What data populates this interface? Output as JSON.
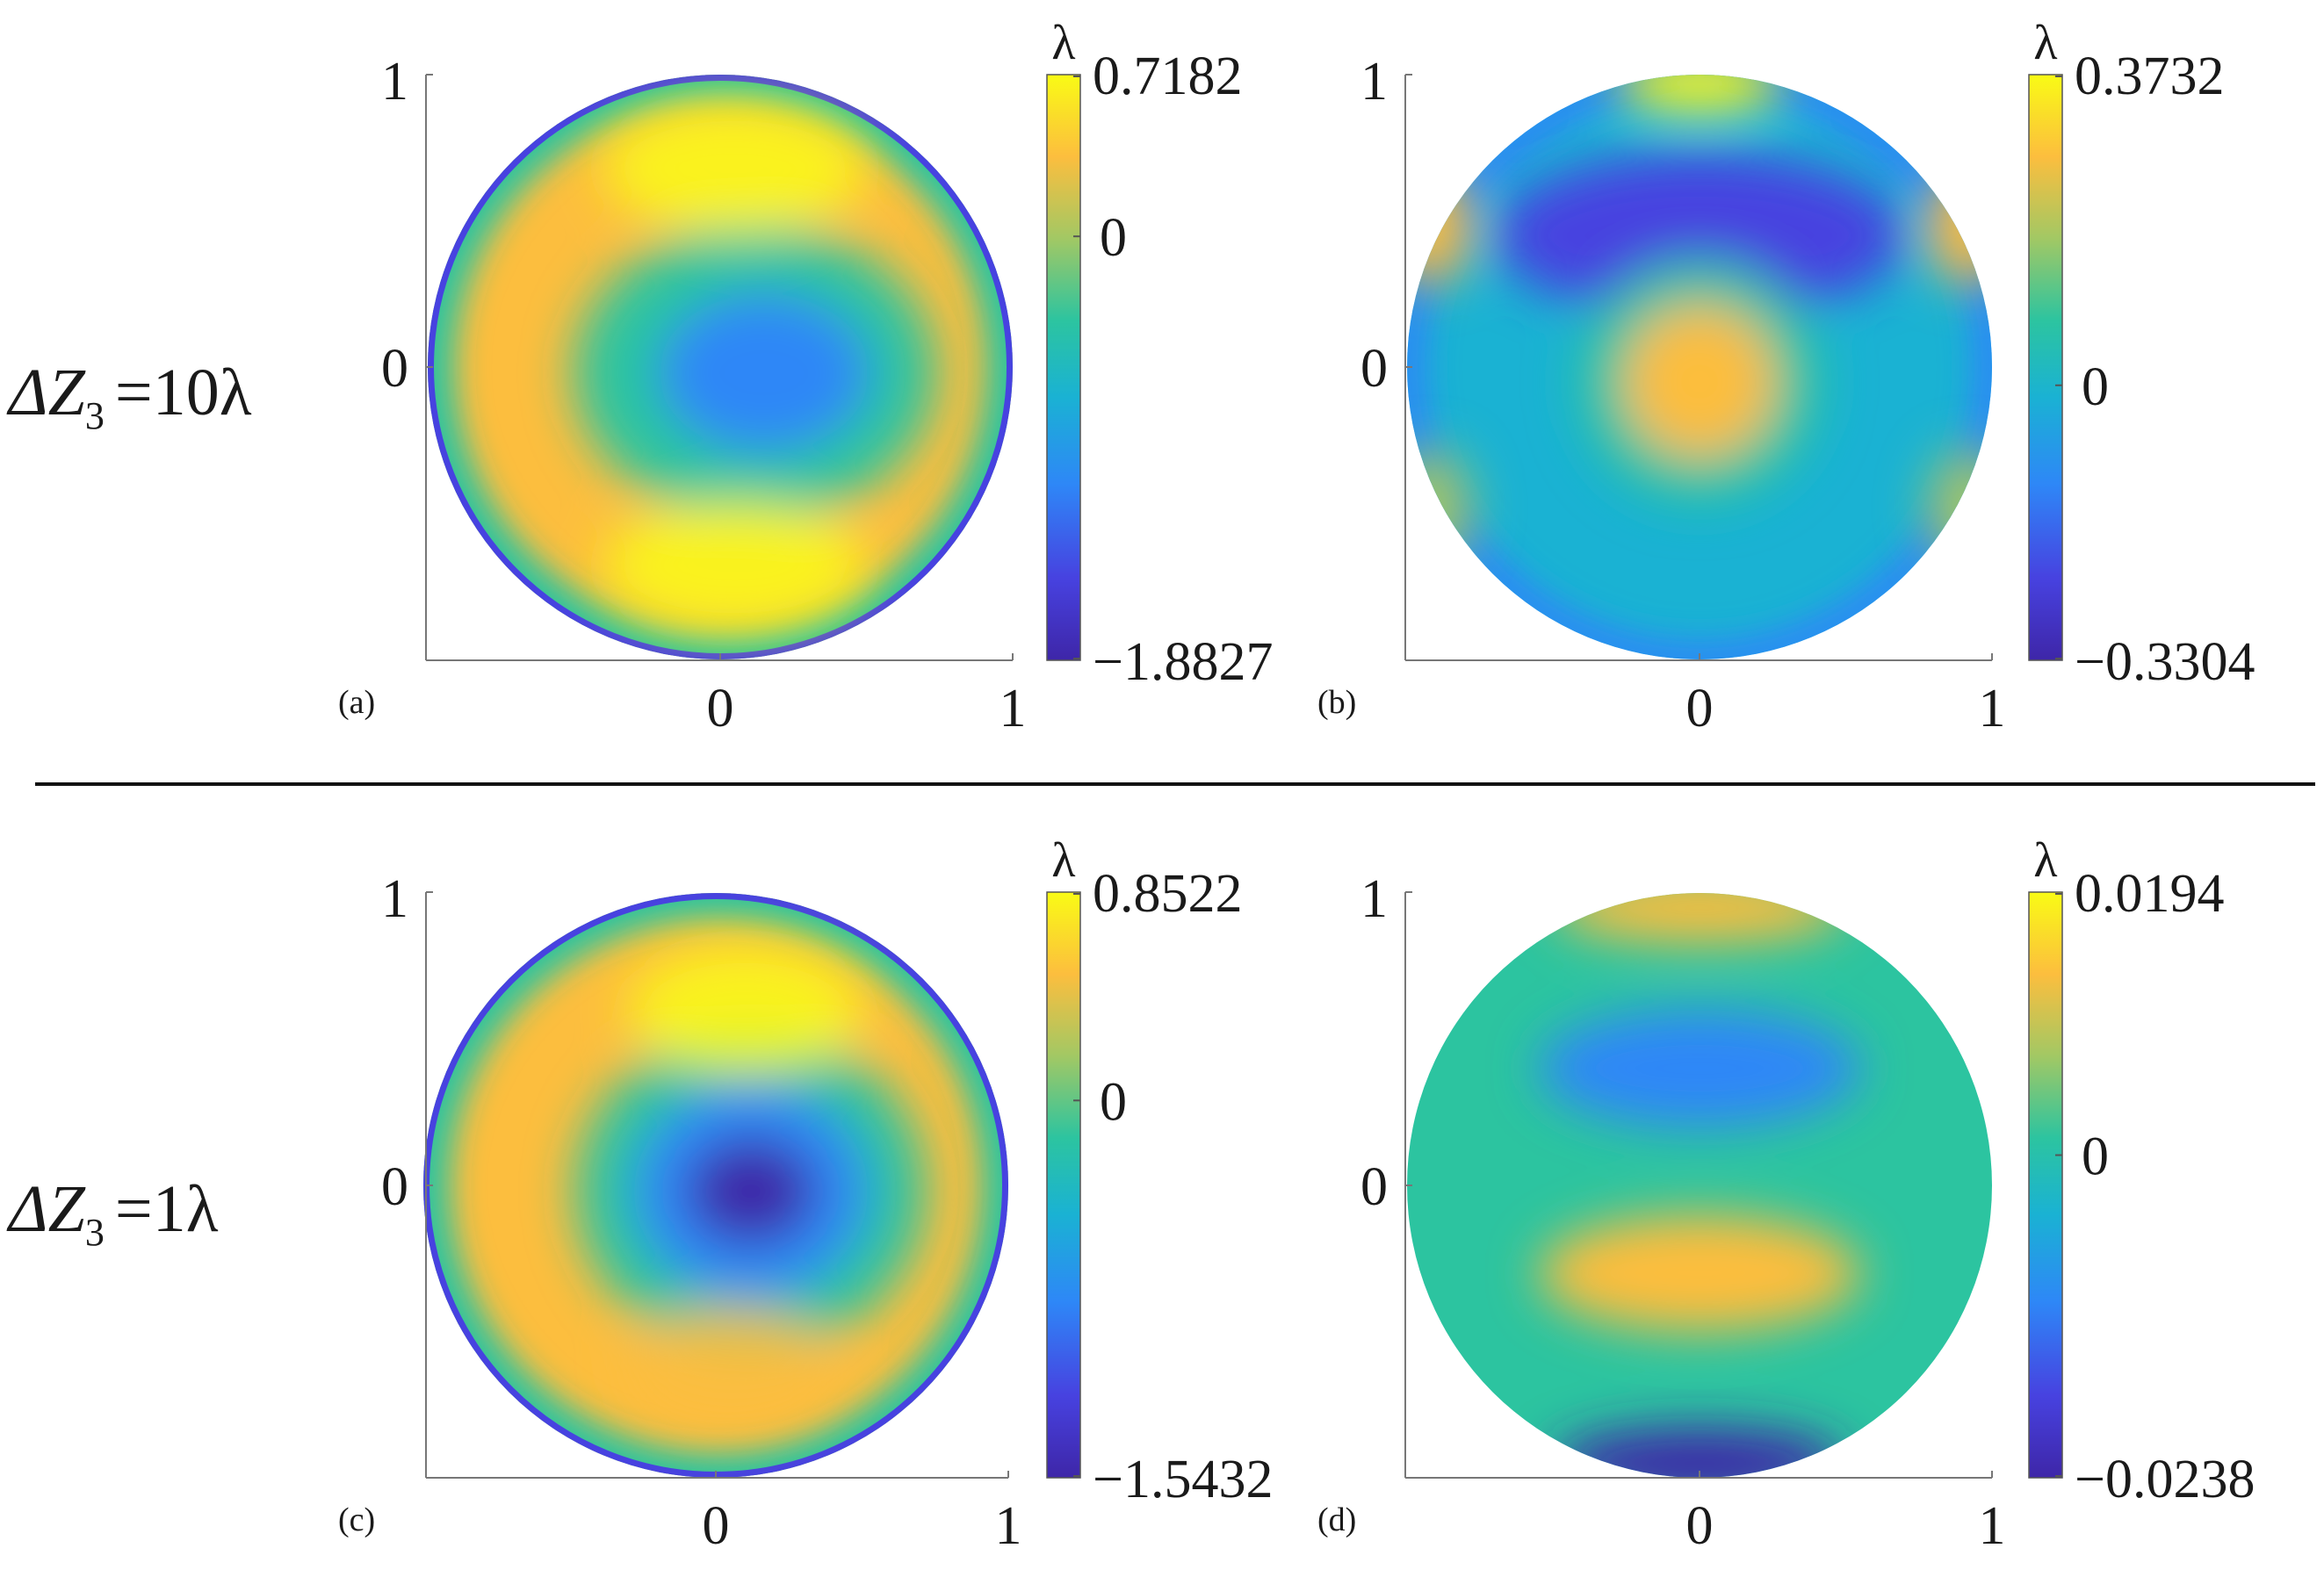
{
  "rows": [
    {
      "label_prefix": "ΔZ",
      "label_sub": "3",
      "label_value": "=10λ"
    },
    {
      "label_prefix": "ΔZ",
      "label_sub": "3",
      "label_value": "=1λ"
    }
  ],
  "colormap": [
    "#3e26a8",
    "#4742e0",
    "#2e87f7",
    "#1ab2d3",
    "#2cc4a0",
    "#a2c864",
    "#fcbe3e",
    "#f9fb15"
  ],
  "panels": [
    {
      "tag": "(a)",
      "unit": "λ",
      "cbar_max": "0.7182",
      "cbar_mid": "0",
      "cbar_min": "−1.8827",
      "x_ticks": [
        "0",
        "1"
      ],
      "y_ticks": [
        "1",
        "0"
      ],
      "pattern": "defocus-ring",
      "blobs": [
        {
          "x": 0.12,
          "y": -0.02,
          "rx": 0.62,
          "ry": 0.5,
          "color": "#2cc4a0"
        },
        {
          "x": 0.15,
          "y": -0.02,
          "rx": 0.36,
          "ry": 0.27,
          "color": "#2e87f7"
        }
      ],
      "highlights": [
        {
          "x": 0.05,
          "y": 0.68,
          "rx": 0.45,
          "ry": 0.22,
          "color": "#f9fb15"
        },
        {
          "x": 0.05,
          "y": -0.68,
          "rx": 0.45,
          "ry": 0.22,
          "color": "#f9fb15"
        }
      ]
    },
    {
      "tag": "(b)",
      "unit": "λ",
      "cbar_max": "0.3732",
      "cbar_mid": "0",
      "cbar_min": "−0.3304",
      "x_ticks": [
        "0",
        "1"
      ],
      "y_ticks": [
        "1",
        "0"
      ],
      "pattern": "trefoil",
      "blobs": [
        {
          "x": 0.0,
          "y": 0.45,
          "rx": 0.7,
          "ry": 0.28,
          "color": "#4742e0"
        },
        {
          "x": 0.0,
          "y": -0.05,
          "rx": 0.42,
          "ry": 0.42,
          "color": "#2cc4a0"
        },
        {
          "x": 0.0,
          "y": -0.05,
          "rx": 0.26,
          "ry": 0.26,
          "color": "#fcbe3e"
        },
        {
          "x": 0.0,
          "y": 0.97,
          "rx": 0.28,
          "ry": 0.1,
          "color": "#f9fb15"
        },
        {
          "x": -0.92,
          "y": 0.48,
          "rx": 0.14,
          "ry": 0.2,
          "color": "#fcbe3e"
        },
        {
          "x": 0.92,
          "y": 0.48,
          "rx": 0.14,
          "ry": 0.2,
          "color": "#fcbe3e"
        },
        {
          "x": -0.92,
          "y": -0.48,
          "rx": 0.14,
          "ry": 0.2,
          "color": "#a2c864"
        },
        {
          "x": 0.92,
          "y": -0.48,
          "rx": 0.14,
          "ry": 0.2,
          "color": "#a2c864"
        }
      ],
      "highlights": []
    },
    {
      "tag": "(c)",
      "unit": "λ",
      "cbar_max": "0.8522",
      "cbar_mid": "0",
      "cbar_min": "−1.5432",
      "x_ticks": [
        "0",
        "1"
      ],
      "y_ticks": [
        "1",
        "0"
      ],
      "pattern": "defocus-ring",
      "blobs": [
        {
          "x": 0.12,
          "y": -0.02,
          "rx": 0.6,
          "ry": 0.55,
          "color": "#2cc4a0"
        },
        {
          "x": 0.12,
          "y": -0.02,
          "rx": 0.4,
          "ry": 0.36,
          "color": "#2e87f7"
        },
        {
          "x": 0.12,
          "y": -0.02,
          "rx": 0.22,
          "ry": 0.18,
          "color": "#3e26a8"
        }
      ],
      "highlights": [
        {
          "x": 0.1,
          "y": 0.6,
          "rx": 0.4,
          "ry": 0.22,
          "color": "#f9fb15"
        },
        {
          "x": 0.05,
          "y": -0.62,
          "rx": 0.35,
          "ry": 0.2,
          "color": "#fcbe3e"
        }
      ]
    },
    {
      "tag": "(d)",
      "unit": "λ",
      "cbar_max": "0.0194",
      "cbar_mid": "0",
      "cbar_min": "−0.0238",
      "x_ticks": [
        "0",
        "1"
      ],
      "y_ticks": [
        "1",
        "0"
      ],
      "pattern": "banded",
      "blobs": [
        {
          "x": 0.0,
          "y": 0.4,
          "rx": 0.55,
          "ry": 0.2,
          "color": "#2e87f7"
        },
        {
          "x": 0.0,
          "y": -0.3,
          "rx": 0.55,
          "ry": 0.2,
          "color": "#fcbe3e"
        },
        {
          "x": 0.0,
          "y": 0.95,
          "rx": 0.5,
          "ry": 0.12,
          "color": "#fcbe3e"
        },
        {
          "x": 0.0,
          "y": -0.95,
          "rx": 0.5,
          "ry": 0.12,
          "color": "#3e26a8"
        }
      ],
      "highlights": []
    }
  ]
}
